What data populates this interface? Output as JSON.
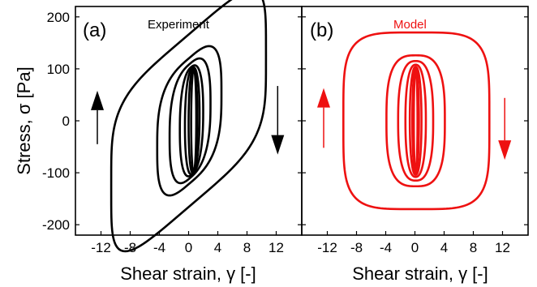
{
  "figure": {
    "ylabel": "Stress, σ [Pa]",
    "xlabel_a": "Shear strain, γ [-]",
    "xlabel_b": "Shear strain, γ [-]"
  },
  "chart_data": [
    {
      "type": "line",
      "panel": "(a)",
      "title": "Experiment",
      "color": "#000000",
      "xlabel": "Shear strain, γ [-]",
      "ylabel": "Stress, σ [Pa]",
      "xlim": [
        -15.5,
        15.5
      ],
      "ylim": [
        -220,
        220
      ],
      "xticks": [
        -12,
        -8,
        -4,
        0,
        4,
        8,
        12
      ],
      "yticks": [
        -200,
        -100,
        0,
        100,
        200
      ],
      "grid": false,
      "series": [
        {
          "cx": 0.0,
          "rx": 10.6,
          "ry": 166,
          "tilt": 12
        },
        {
          "cx": 0.1,
          "rx": 4.4,
          "ry": 121,
          "tilt": 12
        },
        {
          "cx": 0.2,
          "rx": 2.8,
          "ry": 110,
          "tilt": 12
        },
        {
          "cx": 0.4,
          "rx": 1.6,
          "ry": 104,
          "tilt": 11
        },
        {
          "cx": 0.5,
          "rx": 1.0,
          "ry": 102,
          "tilt": 11
        },
        {
          "cx": 0.6,
          "rx": 0.6,
          "ry": 100,
          "tilt": 10
        },
        {
          "cx": 0.7,
          "rx": 0.35,
          "ry": 99,
          "tilt": 10
        }
      ],
      "arrows": [
        {
          "direction": "up",
          "x": -12.5,
          "y_from": -45,
          "y_to": 58
        },
        {
          "direction": "down",
          "x": 12.2,
          "y_from": 67,
          "y_to": -65
        }
      ]
    },
    {
      "type": "line",
      "panel": "(b)",
      "title": "Model",
      "color": "#ee1111",
      "xlabel": "Shear strain, γ [-]",
      "ylabel": "Stress, σ [Pa]",
      "xlim": [
        -15.5,
        15.5
      ],
      "ylim": [
        -220,
        220
      ],
      "xticks": [
        -12,
        -8,
        -4,
        0,
        4,
        8,
        12
      ],
      "yticks": [
        -200,
        -100,
        0,
        100,
        200
      ],
      "grid": false,
      "series": [
        {
          "cx": 0.2,
          "rx": 10.0,
          "ry": 170,
          "tilt": 0
        },
        {
          "cx": 0.1,
          "rx": 4.0,
          "ry": 126,
          "tilt": 0
        },
        {
          "cx": 0.1,
          "rx": 2.4,
          "ry": 115,
          "tilt": 0
        },
        {
          "cx": 0.1,
          "rx": 1.4,
          "ry": 108,
          "tilt": 0
        },
        {
          "cx": 0.1,
          "rx": 0.8,
          "ry": 104,
          "tilt": 0
        },
        {
          "cx": 0.1,
          "rx": 0.45,
          "ry": 101,
          "tilt": 0
        },
        {
          "cx": 0.1,
          "rx": 0.25,
          "ry": 99,
          "tilt": 0
        }
      ],
      "arrows": [
        {
          "direction": "up",
          "x": -12.5,
          "y_from": -52,
          "y_to": 63
        },
        {
          "direction": "down",
          "x": 12.3,
          "y_from": 44,
          "y_to": -75
        }
      ]
    }
  ]
}
